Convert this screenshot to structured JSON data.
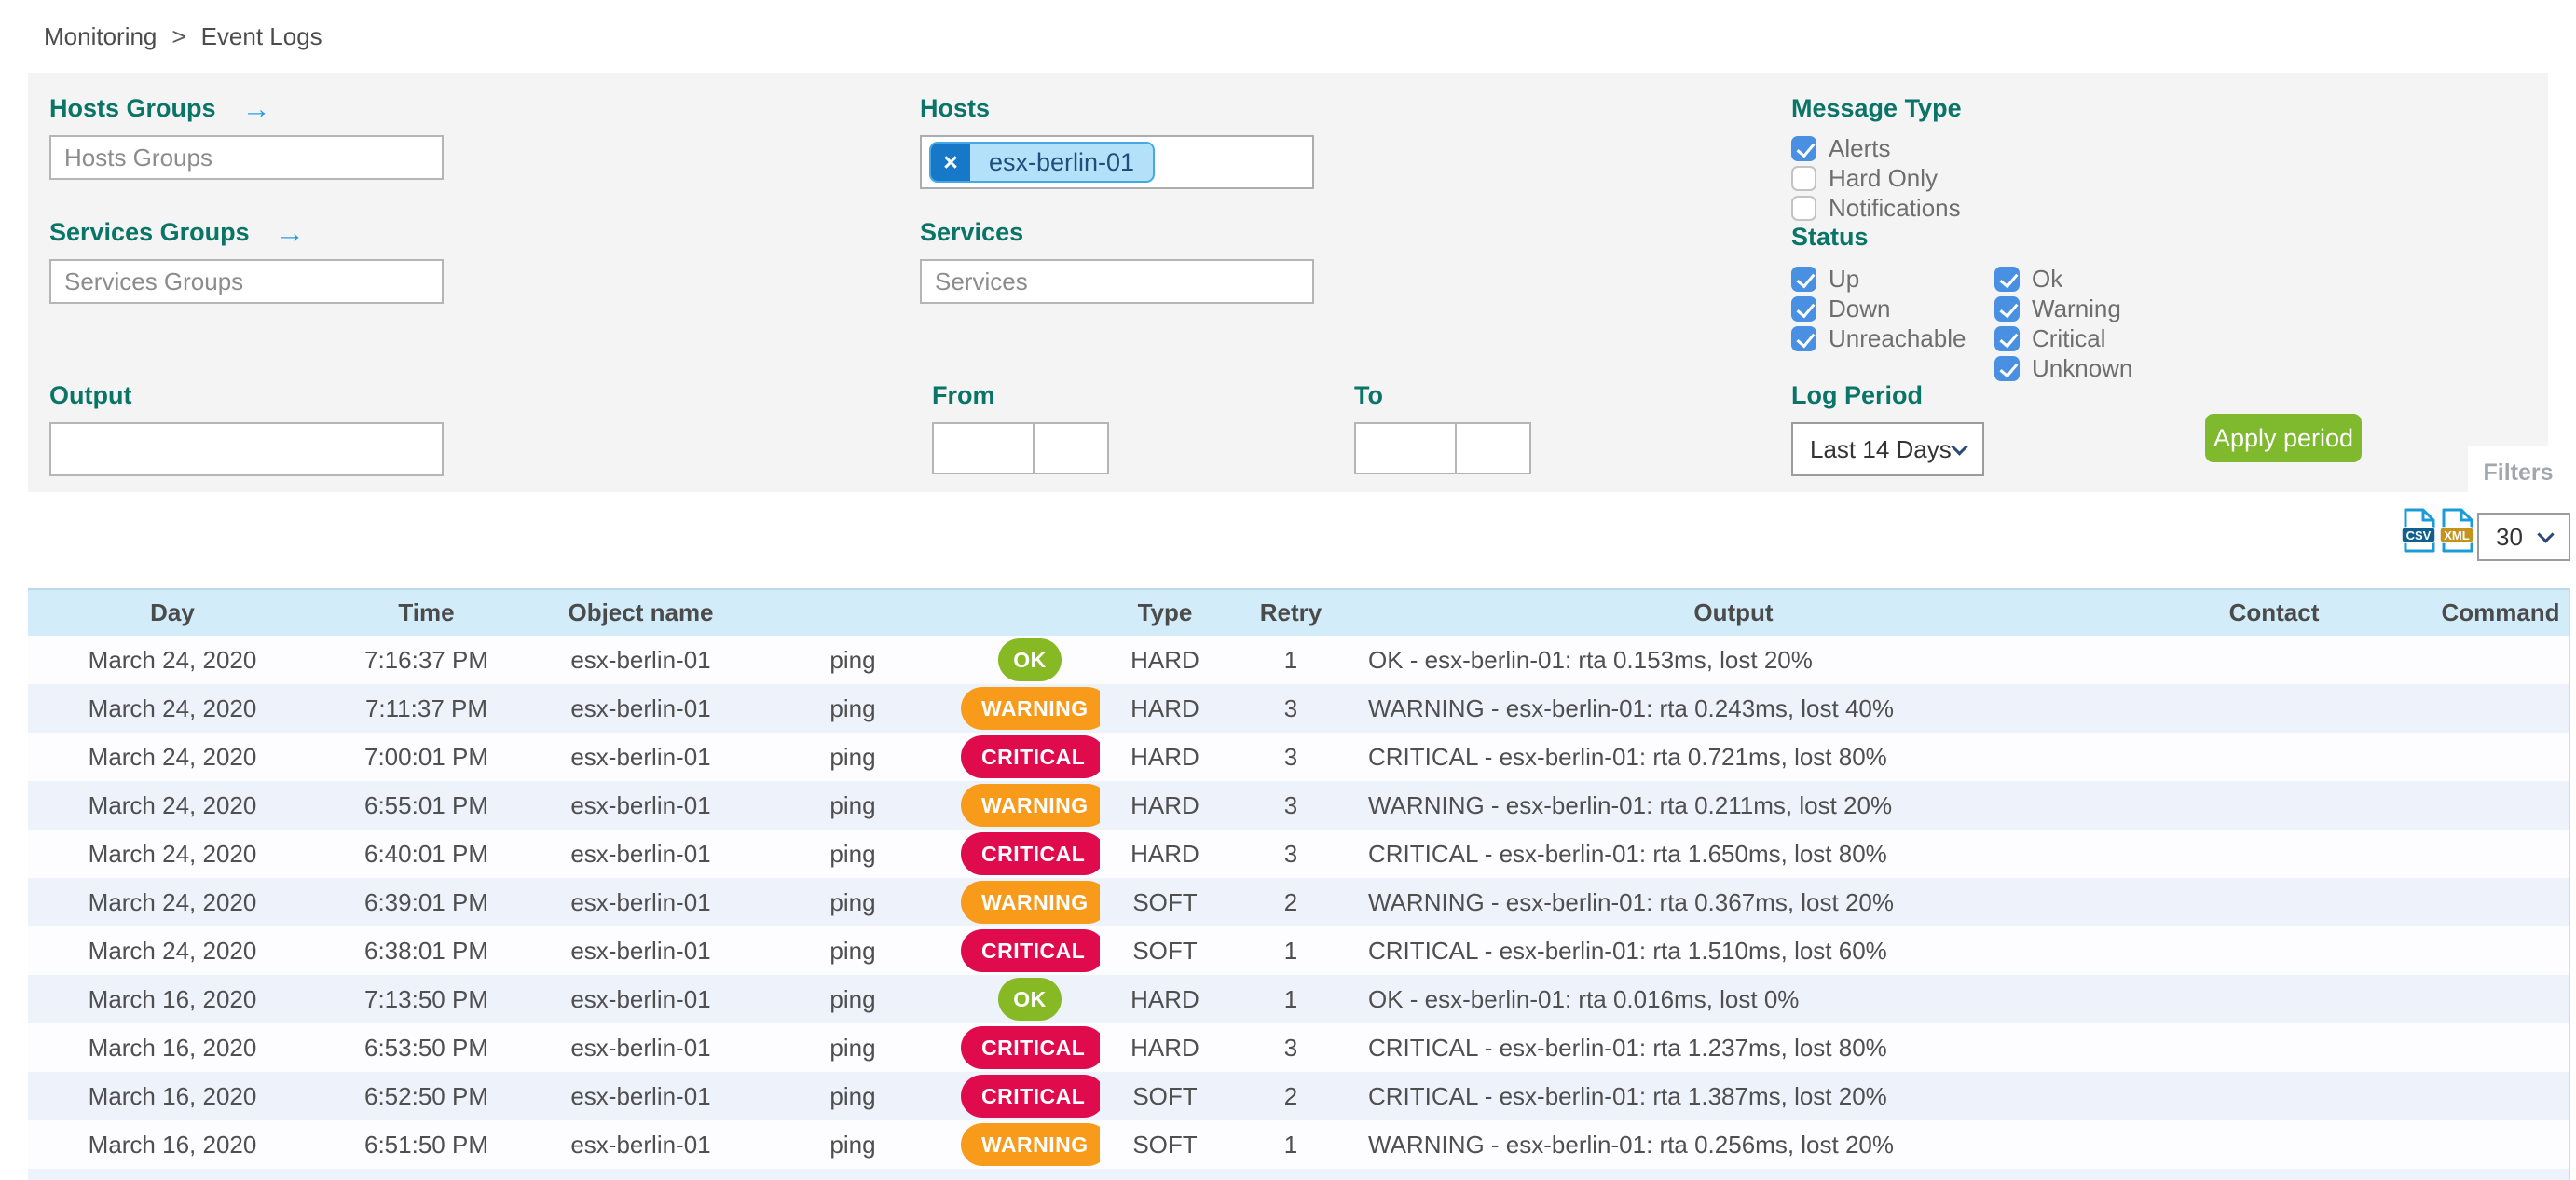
{
  "breadcrumb": {
    "items": [
      "Monitoring",
      "Event Logs"
    ],
    "separator": ">"
  },
  "filters": {
    "hosts_groups": {
      "label": "Hosts Groups",
      "arrow_icon": "→",
      "placeholder": "Hosts Groups",
      "value": ""
    },
    "services_groups": {
      "label": "Services Groups",
      "arrow_icon": "→",
      "placeholder": "Services Groups",
      "value": ""
    },
    "hosts": {
      "label": "Hosts",
      "chips": [
        {
          "text": "esx-berlin-01",
          "remove_icon": "×"
        }
      ]
    },
    "services": {
      "label": "Services",
      "placeholder": "Services",
      "value": ""
    },
    "message_type": {
      "label": "Message Type",
      "options": [
        {
          "label": "Alerts",
          "checked": true
        },
        {
          "label": "Hard Only",
          "checked": false
        },
        {
          "label": "Notifications",
          "checked": false
        }
      ]
    },
    "status": {
      "label": "Status",
      "columns": [
        [
          {
            "label": "Up",
            "checked": true
          },
          {
            "label": "Down",
            "checked": true
          },
          {
            "label": "Unreachable",
            "checked": true
          }
        ],
        [
          {
            "label": "Ok",
            "checked": true
          },
          {
            "label": "Warning",
            "checked": true
          },
          {
            "label": "Critical",
            "checked": true
          },
          {
            "label": "Unknown",
            "checked": true
          }
        ]
      ]
    },
    "output": {
      "label": "Output",
      "value": ""
    },
    "from": {
      "label": "From",
      "date_value": "",
      "time_value": ""
    },
    "to": {
      "label": "To",
      "date_value": "",
      "time_value": ""
    },
    "log_period": {
      "label": "Log Period",
      "selected": "Last 14 Days"
    },
    "apply_button": "Apply period",
    "filters_tab": "Filters"
  },
  "toolbar": {
    "csv_icon": "CSV",
    "xml_icon": "XML",
    "page_size": "30"
  },
  "table": {
    "headers": [
      "Day",
      "Time",
      "Object name",
      "",
      "",
      "Type",
      "Retry",
      "Output",
      "Contact",
      "Command"
    ],
    "rows": [
      {
        "day": "March 24, 2020",
        "time": "7:16:37 PM",
        "object": "esx-berlin-01",
        "service": "ping",
        "status": "OK",
        "type": "HARD",
        "retry": "1",
        "output": "OK - esx-berlin-01: rta 0.153ms, lost 20%",
        "contact": "",
        "command": ""
      },
      {
        "day": "March 24, 2020",
        "time": "7:11:37 PM",
        "object": "esx-berlin-01",
        "service": "ping",
        "status": "WARNING",
        "type": "HARD",
        "retry": "3",
        "output": "WARNING - esx-berlin-01: rta 0.243ms, lost 40%",
        "contact": "",
        "command": ""
      },
      {
        "day": "March 24, 2020",
        "time": "7:00:01 PM",
        "object": "esx-berlin-01",
        "service": "ping",
        "status": "CRITICAL",
        "type": "HARD",
        "retry": "3",
        "output": "CRITICAL - esx-berlin-01: rta 0.721ms, lost 80%",
        "contact": "",
        "command": ""
      },
      {
        "day": "March 24, 2020",
        "time": "6:55:01 PM",
        "object": "esx-berlin-01",
        "service": "ping",
        "status": "WARNING",
        "type": "HARD",
        "retry": "3",
        "output": "WARNING - esx-berlin-01: rta 0.211ms, lost 20%",
        "contact": "",
        "command": ""
      },
      {
        "day": "March 24, 2020",
        "time": "6:40:01 PM",
        "object": "esx-berlin-01",
        "service": "ping",
        "status": "CRITICAL",
        "type": "HARD",
        "retry": "3",
        "output": "CRITICAL - esx-berlin-01: rta 1.650ms, lost 80%",
        "contact": "",
        "command": ""
      },
      {
        "day": "March 24, 2020",
        "time": "6:39:01 PM",
        "object": "esx-berlin-01",
        "service": "ping",
        "status": "WARNING",
        "type": "SOFT",
        "retry": "2",
        "output": "WARNING - esx-berlin-01: rta 0.367ms, lost 20%",
        "contact": "",
        "command": ""
      },
      {
        "day": "March 24, 2020",
        "time": "6:38:01 PM",
        "object": "esx-berlin-01",
        "service": "ping",
        "status": "CRITICAL",
        "type": "SOFT",
        "retry": "1",
        "output": "CRITICAL - esx-berlin-01: rta 1.510ms, lost 60%",
        "contact": "",
        "command": ""
      },
      {
        "day": "March 16, 2020",
        "time": "7:13:50 PM",
        "object": "esx-berlin-01",
        "service": "ping",
        "status": "OK",
        "type": "HARD",
        "retry": "1",
        "output": "OK - esx-berlin-01: rta 0.016ms, lost 0%",
        "contact": "",
        "command": ""
      },
      {
        "day": "March 16, 2020",
        "time": "6:53:50 PM",
        "object": "esx-berlin-01",
        "service": "ping",
        "status": "CRITICAL",
        "type": "HARD",
        "retry": "3",
        "output": "CRITICAL - esx-berlin-01: rta 1.237ms, lost 80%",
        "contact": "",
        "command": ""
      },
      {
        "day": "March 16, 2020",
        "time": "6:52:50 PM",
        "object": "esx-berlin-01",
        "service": "ping",
        "status": "CRITICAL",
        "type": "SOFT",
        "retry": "2",
        "output": "CRITICAL - esx-berlin-01: rta 1.387ms, lost 20%",
        "contact": "",
        "command": ""
      },
      {
        "day": "March 16, 2020",
        "time": "6:51:50 PM",
        "object": "esx-berlin-01",
        "service": "ping",
        "status": "WARNING",
        "type": "SOFT",
        "retry": "1",
        "output": "WARNING - esx-berlin-01: rta 0.256ms, lost 20%",
        "contact": "",
        "command": ""
      }
    ]
  },
  "colors": {
    "teal": "#0a7467",
    "cb-blue": "#4a90e2",
    "green": "#7eb92e",
    "ok": "#87b925",
    "warning": "#f89b1b",
    "critical": "#e00b4c",
    "header-bg": "#d2ecf9",
    "chip-dark": "#1878c8",
    "chip-light": "#b3e1fa"
  }
}
